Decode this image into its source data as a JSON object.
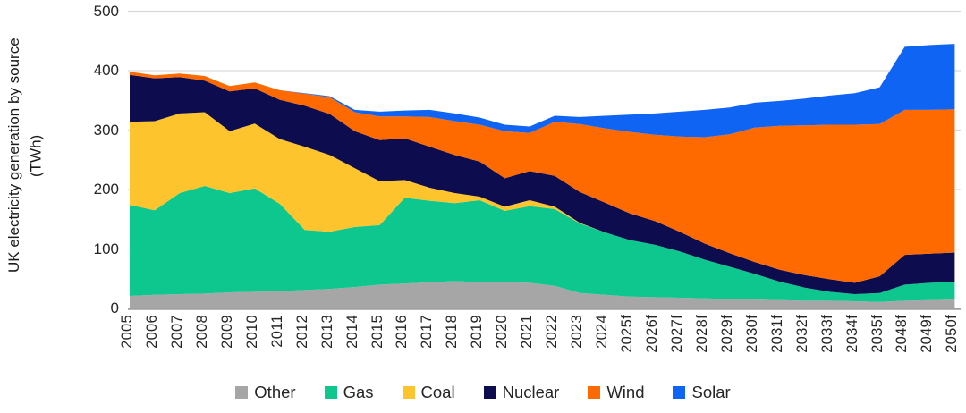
{
  "y_axis": {
    "title_line1": "UK electricity generation by source",
    "title_line2": "(TWh)"
  },
  "chart_data": {
    "type": "area",
    "stacked": true,
    "title": "",
    "ylabel": "UK electricity generation by source (TWh)",
    "xlabel": "",
    "unit": "TWh",
    "ylim": [
      0,
      500
    ],
    "y_ticks": [
      0,
      100,
      200,
      300,
      400,
      500
    ],
    "grid": "horizontal",
    "gridline_color": "#d9d9d9",
    "axis_line_color": "#a0a0a0",
    "legend_position": "bottom",
    "categories": [
      "2005",
      "2006",
      "2007",
      "2008",
      "2009",
      "2010",
      "2011",
      "2012",
      "2013",
      "2014",
      "2015",
      "2016",
      "2017",
      "2018",
      "2019",
      "2020",
      "2021",
      "2022",
      "2023",
      "2024",
      "2025f",
      "2026f",
      "2027f",
      "2028f",
      "2029f",
      "2030f",
      "2031f",
      "2032f",
      "2033f",
      "2034f",
      "2035f",
      "2048f",
      "2049f",
      "2050f"
    ],
    "series": [
      {
        "name": "Other",
        "color": "#a6a6a6",
        "values": [
          21,
          23,
          24,
          25,
          27,
          28,
          29,
          31,
          33,
          36,
          40,
          42,
          44,
          46,
          44,
          45,
          43,
          38,
          26,
          23,
          20,
          19,
          18,
          17,
          16,
          15,
          14,
          13,
          13,
          12,
          11,
          13,
          14,
          15
        ]
      },
      {
        "name": "Gas",
        "color": "#0ec78e",
        "values": [
          153,
          142,
          170,
          181,
          167,
          174,
          147,
          101,
          96,
          101,
          100,
          144,
          137,
          131,
          138,
          119,
          129,
          129,
          117,
          105,
          95,
          88,
          78,
          65,
          54,
          43,
          31,
          22,
          15,
          12,
          15,
          27,
          29,
          30
        ]
      },
      {
        "name": "Coal",
        "color": "#fdc42e",
        "values": [
          140,
          150,
          134,
          124,
          104,
          109,
          109,
          140,
          129,
          99,
          74,
          30,
          22,
          17,
          6,
          7,
          10,
          4,
          1,
          0,
          0,
          0,
          0,
          0,
          0,
          0,
          0,
          0,
          0,
          0,
          0,
          0,
          0,
          0
        ]
      },
      {
        "name": "Nuclear",
        "color": "#0c0c4e",
        "values": [
          79,
          72,
          61,
          53,
          67,
          59,
          66,
          69,
          69,
          62,
          69,
          70,
          69,
          64,
          59,
          48,
          49,
          52,
          52,
          50,
          45,
          40,
          33,
          27,
          23,
          20,
          20,
          21,
          21,
          19,
          28,
          50,
          49,
          49
        ]
      },
      {
        "name": "Wind",
        "color": "#fe6a00",
        "values": [
          5,
          5,
          6,
          8,
          9,
          10,
          16,
          20,
          28,
          32,
          40,
          37,
          50,
          57,
          62,
          79,
          64,
          91,
          114,
          125,
          137,
          145,
          160,
          179,
          200,
          226,
          242,
          252,
          260,
          266,
          256,
          244,
          242,
          241
        ]
      },
      {
        "name": "Solar",
        "color": "#1064f4",
        "values": [
          0,
          0,
          0,
          0,
          0,
          0,
          0,
          1,
          2,
          4,
          8,
          10,
          12,
          13,
          12,
          11,
          11,
          10,
          12,
          21,
          29,
          36,
          42,
          46,
          45,
          42,
          42,
          45,
          49,
          53,
          62,
          106,
          109,
          110
        ]
      }
    ]
  }
}
